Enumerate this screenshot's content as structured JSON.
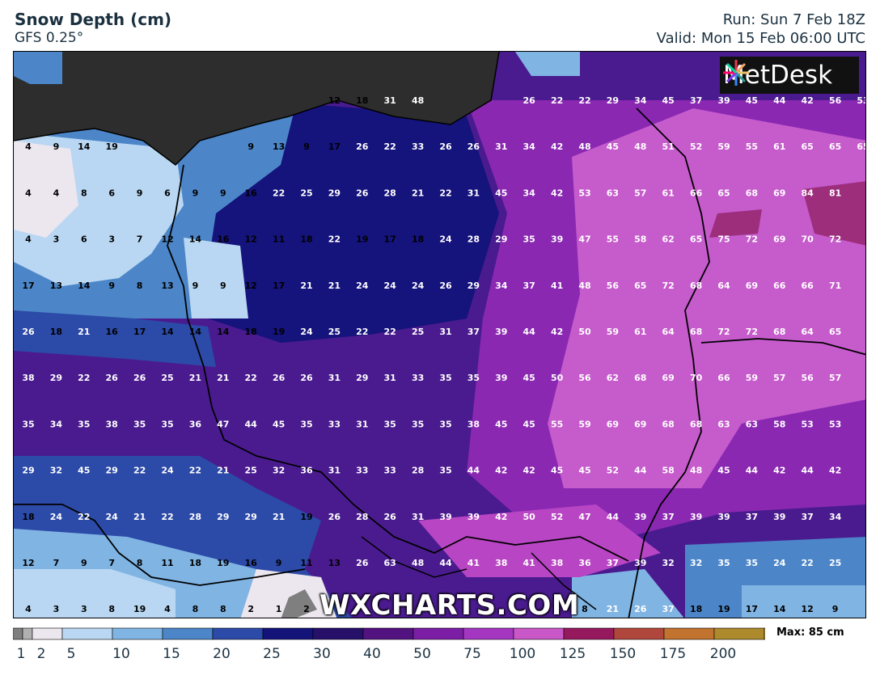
{
  "header": {
    "title": "Snow Depth (cm)",
    "model": "GFS 0.25°",
    "run": "Run: Sun 7 Feb 18Z",
    "valid": "Valid: Mon 15 Feb 06:00 UTC"
  },
  "logo": {
    "text": "MetDesk",
    "icon": "metdesk-starburst-icon"
  },
  "watermark": "WXCHARTS.COM",
  "legend": {
    "max_label": "Max: 85 cm",
    "ticks": [
      "1",
      "2",
      "5",
      "10",
      "15",
      "20",
      "25",
      "30",
      "40",
      "50",
      "75",
      "100",
      "125",
      "150",
      "175",
      "200"
    ],
    "colors": [
      "#7f7f7f",
      "#b0b0b0",
      "#ece6ee",
      "#b9d7f2",
      "#80b4e3",
      "#4c86c8",
      "#2c4aa7",
      "#13137a",
      "#27106a",
      "#52127f",
      "#7c1ea5",
      "#a436c2",
      "#c957c8",
      "#96195e",
      "#b0473c",
      "#c1732f",
      "#ad8a2c",
      "#c9a94a",
      "#e4ca86",
      "#f5e4b0"
    ]
  },
  "map": {
    "colors": {
      "land_bg": "#4a1b8f",
      "sea": "#2d2d2d",
      "border": "#000000"
    },
    "grid_values": [
      [
        "",
        "",
        "",
        "",
        "",
        "",
        "",
        "",
        "",
        "",
        "",
        "12",
        "18",
        "31",
        "48",
        "",
        "",
        "",
        "26",
        "22",
        "22",
        "29",
        "34",
        "45",
        "37",
        "39",
        "45",
        "44",
        "42",
        "56",
        "53"
      ],
      [
        "4",
        "9",
        "14",
        "19",
        "",
        "",
        "",
        "",
        "9",
        "13",
        "9",
        "17",
        "26",
        "22",
        "33",
        "26",
        "26",
        "31",
        "34",
        "42",
        "48",
        "45",
        "48",
        "51",
        "52",
        "59",
        "55",
        "61",
        "65",
        "65",
        "65"
      ],
      [
        "4",
        "4",
        "8",
        "6",
        "9",
        "6",
        "9",
        "9",
        "16",
        "22",
        "25",
        "29",
        "26",
        "28",
        "21",
        "22",
        "31",
        "45",
        "34",
        "42",
        "53",
        "63",
        "57",
        "61",
        "66",
        "65",
        "68",
        "69",
        "84",
        "81"
      ],
      [
        "4",
        "3",
        "6",
        "3",
        "7",
        "12",
        "14",
        "16",
        "12",
        "11",
        "18",
        "22",
        "19",
        "17",
        "18",
        "24",
        "28",
        "29",
        "35",
        "39",
        "47",
        "55",
        "58",
        "62",
        "65",
        "75",
        "72",
        "69",
        "70",
        "72"
      ],
      [
        "17",
        "13",
        "14",
        "9",
        "8",
        "13",
        "9",
        "9",
        "12",
        "17",
        "21",
        "21",
        "24",
        "24",
        "24",
        "26",
        "29",
        "34",
        "37",
        "41",
        "48",
        "56",
        "65",
        "72",
        "68",
        "64",
        "69",
        "66",
        "66",
        "71"
      ],
      [
        "26",
        "18",
        "21",
        "16",
        "17",
        "14",
        "14",
        "14",
        "18",
        "19",
        "24",
        "25",
        "22",
        "22",
        "25",
        "31",
        "37",
        "39",
        "44",
        "42",
        "50",
        "59",
        "61",
        "64",
        "68",
        "72",
        "72",
        "68",
        "64",
        "65"
      ],
      [
        "38",
        "29",
        "22",
        "26",
        "26",
        "25",
        "21",
        "21",
        "22",
        "26",
        "26",
        "31",
        "29",
        "31",
        "33",
        "35",
        "35",
        "39",
        "45",
        "50",
        "56",
        "62",
        "68",
        "69",
        "70",
        "66",
        "59",
        "57",
        "56",
        "57"
      ],
      [
        "35",
        "34",
        "35",
        "38",
        "35",
        "35",
        "36",
        "47",
        "44",
        "45",
        "35",
        "33",
        "31",
        "35",
        "35",
        "35",
        "38",
        "45",
        "45",
        "55",
        "59",
        "69",
        "69",
        "68",
        "68",
        "63",
        "63",
        "58",
        "53",
        "53"
      ],
      [
        "29",
        "32",
        "45",
        "29",
        "22",
        "24",
        "22",
        "21",
        "25",
        "32",
        "36",
        "31",
        "33",
        "33",
        "28",
        "35",
        "44",
        "42",
        "42",
        "45",
        "45",
        "52",
        "44",
        "58",
        "48",
        "45",
        "44",
        "42",
        "44",
        "42"
      ],
      [
        "18",
        "24",
        "22",
        "24",
        "21",
        "22",
        "28",
        "29",
        "29",
        "21",
        "19",
        "26",
        "28",
        "26",
        "31",
        "39",
        "39",
        "42",
        "50",
        "52",
        "47",
        "44",
        "39",
        "37",
        "39",
        "39",
        "37",
        "39",
        "37",
        "34"
      ],
      [
        "12",
        "7",
        "9",
        "7",
        "8",
        "11",
        "18",
        "19",
        "16",
        "9",
        "11",
        "13",
        "26",
        "63",
        "48",
        "44",
        "41",
        "38",
        "41",
        "38",
        "36",
        "37",
        "39",
        "32",
        "32",
        "35",
        "35",
        "24",
        "22",
        "25"
      ],
      [
        "4",
        "3",
        "3",
        "8",
        "19",
        "4",
        "8",
        "8",
        "2",
        "1",
        "2",
        "",
        "",
        "",
        "",
        "",
        "",
        "",
        "",
        "",
        "8",
        "21",
        "26",
        "37",
        "18",
        "19",
        "17",
        "14",
        "12",
        "9"
      ]
    ]
  }
}
